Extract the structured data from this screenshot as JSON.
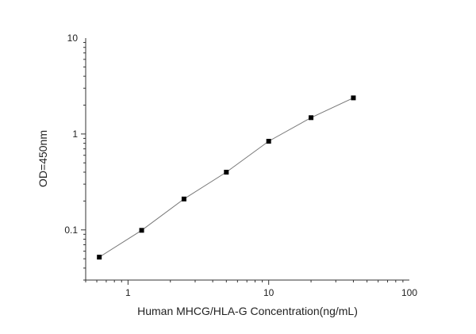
{
  "chart_data": {
    "type": "scatter",
    "title": "",
    "xlabel": "Human MHCG/HLA-G Concentration(ng/mL)",
    "ylabel": "OD=450nm",
    "x_scale": "log",
    "y_scale": "log",
    "xlim": [
      0.5,
      100
    ],
    "ylim": [
      0.03,
      10
    ],
    "x_ticks": [
      {
        "value": 1,
        "label": "1"
      },
      {
        "value": 10,
        "label": "10"
      },
      {
        "value": 100,
        "label": "100"
      }
    ],
    "y_ticks": [
      {
        "value": 0.1,
        "label": "0.1"
      },
      {
        "value": 1,
        "label": "1"
      },
      {
        "value": 10,
        "label": "10"
      }
    ],
    "grid": false,
    "legend": "none",
    "fit_line": true,
    "series": [
      {
        "x": [
          0.625,
          1.25,
          2.5,
          5,
          10,
          20,
          40
        ],
        "y": [
          0.052,
          0.099,
          0.21,
          0.4,
          0.84,
          1.48,
          2.38
        ],
        "marker": "square",
        "color": "#000000",
        "line_color": "#777777"
      }
    ]
  }
}
